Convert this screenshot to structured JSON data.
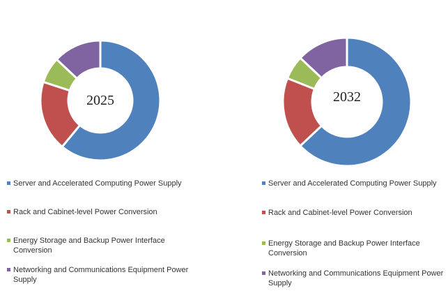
{
  "chart_data": [
    {
      "type": "pie",
      "subtype": "donut",
      "title": "2025",
      "categories": [
        "Server and Accelerated Computing Power Supply",
        "Rack and Cabinet-level Power Conversion",
        "Energy Storage and Backup Power Interface Conversion",
        "Networking and Communications Equipment Power Supply"
      ],
      "values": [
        61,
        19,
        7,
        13
      ],
      "colors": [
        "#4F81BD",
        "#C0504D",
        "#9BBB59",
        "#8064A2"
      ]
    },
    {
      "type": "pie",
      "subtype": "donut",
      "title": "2032",
      "categories": [
        "Server and Accelerated Computing Power Supply",
        "Rack and Cabinet-level Power Conversion",
        "Energy Storage and Backup Power Interface Conversion",
        "Networking and Communications Equipment Power Supply"
      ],
      "values": [
        63,
        18,
        6,
        13
      ],
      "colors": [
        "#4F81BD",
        "#C0504D",
        "#9BBB59",
        "#8064A2"
      ]
    }
  ]
}
